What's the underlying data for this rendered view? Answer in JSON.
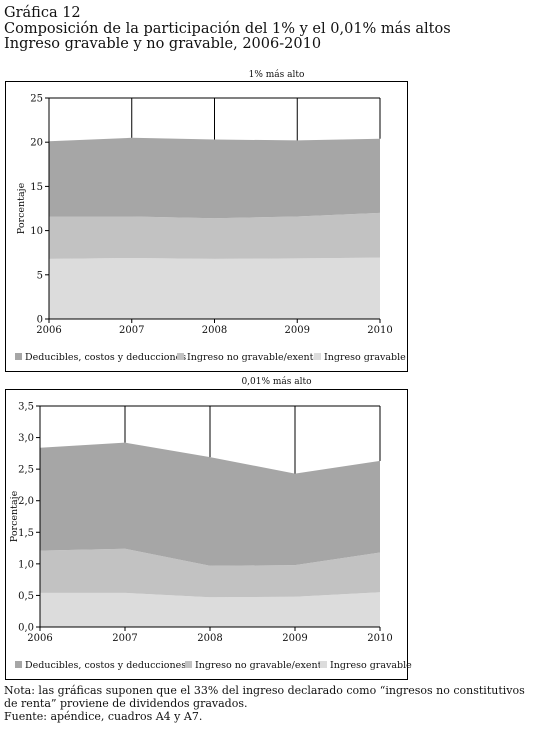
{
  "header": {
    "line1": "Gráfica 12",
    "line2": "Composición de la participación del 1% y el 0,01% más altos",
    "line3": "Ingreso gravable y no gravable, 2006-2010"
  },
  "colors": {
    "deducibles": "#a6a6a6",
    "no_gravable": "#c2c2c2",
    "gravable": "#dcdcdc",
    "frame": "#000000"
  },
  "chart_data": [
    {
      "type": "area",
      "stacked": true,
      "title": "1% más alto",
      "ylabel": "Porcentaje",
      "x": [
        "2006",
        "2007",
        "2008",
        "2009",
        "2010"
      ],
      "ylim": [
        0,
        25
      ],
      "yticks": [
        "0",
        "5",
        "10",
        "15",
        "20",
        "25"
      ],
      "grid": "vertical",
      "legend_position": "bottom",
      "series": [
        {
          "name": "Ingreso gravable",
          "key": "gravable",
          "values": [
            6.8,
            6.9,
            6.8,
            6.85,
            6.95
          ]
        },
        {
          "name": "Ingreso no gravable/exento",
          "key": "no_gravable",
          "values": [
            4.8,
            4.7,
            4.6,
            4.75,
            5.05
          ]
        },
        {
          "name": "Deducibles, costos y deducciones",
          "key": "deducibles",
          "values": [
            8.5,
            8.9,
            8.9,
            8.6,
            8.4
          ]
        }
      ],
      "legend": [
        "Deducibles, costos y deducciones",
        "Ingreso no gravable/exento",
        "Ingreso gravable"
      ]
    },
    {
      "type": "area",
      "stacked": true,
      "title": "0,01% más alto",
      "ylabel": "Porcentaje",
      "x": [
        "2006",
        "2007",
        "2008",
        "2009",
        "2010"
      ],
      "ylim": [
        0,
        3.5
      ],
      "yticks": [
        "0,0",
        "0,5",
        "1,0",
        "1,5",
        "2,0",
        "2,5",
        "3,0",
        "3,5"
      ],
      "grid": "vertical",
      "legend_position": "bottom",
      "series": [
        {
          "name": "Ingreso gravable",
          "key": "gravable",
          "values": [
            0.54,
            0.54,
            0.47,
            0.48,
            0.55
          ]
        },
        {
          "name": "Ingreso no gravable/exento",
          "key": "no_gravable",
          "values": [
            0.67,
            0.7,
            0.5,
            0.5,
            0.63
          ]
        },
        {
          "name": "Deducibles, costos y deducciones",
          "key": "deducibles",
          "values": [
            1.63,
            1.68,
            1.72,
            1.45,
            1.45
          ]
        }
      ],
      "legend": [
        "Deducibles, costos y deducciones",
        "Ingreso no gravable/exento",
        "Ingreso gravable"
      ]
    }
  ],
  "notes": {
    "line1": "Nota: las gráficas suponen que el 33% del ingreso declarado como “ingresos no constitutivos",
    "line2": "de renta” proviene de dividendos gravados.",
    "line3": "Fuente: apéndice, cuadros A4 y A7."
  }
}
